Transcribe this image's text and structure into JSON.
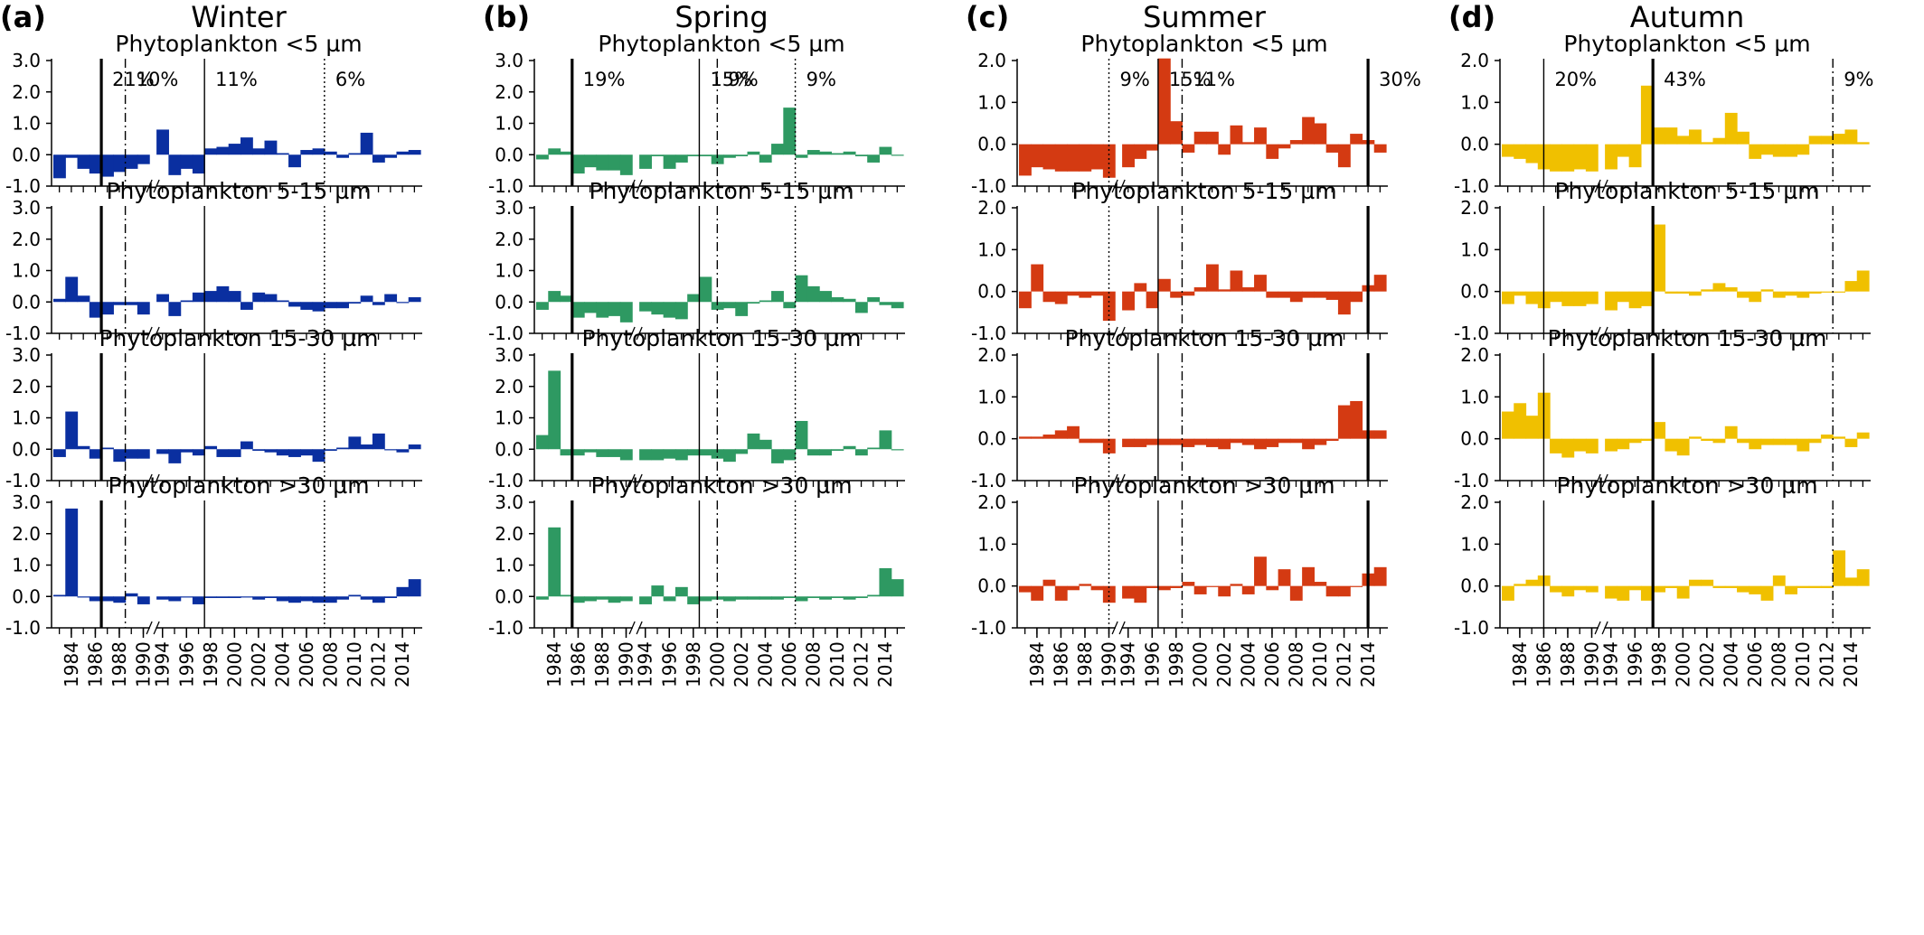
{
  "figure": {
    "years": [
      1983,
      1984,
      1985,
      1986,
      1987,
      1988,
      1989,
      1990,
      1994,
      1995,
      1996,
      1997,
      1998,
      1999,
      2000,
      2001,
      2002,
      2003,
      2004,
      2005,
      2006,
      2007,
      2008,
      2009,
      2010,
      2011,
      2012,
      2013,
      2014,
      2015
    ],
    "xtick_labels": [
      "1984",
      "1986",
      "1988",
      "1990",
      "1994",
      "1996",
      "1998",
      "2000",
      "2002",
      "2004",
      "2006",
      "2008",
      "2010",
      "2012",
      "2014"
    ],
    "size_classes": [
      "Phytoplankton <5 µm",
      "Phytoplankton 5-15 µm",
      "Phytoplankton 15-30 µm",
      "Phytoplankton >30 µm"
    ]
  },
  "chart_data": [
    {
      "type": "bar",
      "panel": "(a)",
      "title": "Winter",
      "color": "#0a2fa0",
      "ylim": [
        -1,
        3
      ],
      "yticks": [
        "3.0",
        "2.0",
        "1.0",
        "0.0",
        "-1.0"
      ],
      "breakpoints": [
        {
          "year": 1986.5,
          "style": "thick",
          "pct": "21%"
        },
        {
          "year": 1988.5,
          "style": "dashdot",
          "pct": "10%"
        },
        {
          "year": 1997.5,
          "style": "solid",
          "pct": "11%"
        },
        {
          "year": 2007.5,
          "style": "dotted",
          "pct": "6%"
        }
      ],
      "series": [
        {
          "name": "Phytoplankton <5 µm",
          "values": [
            -0.75,
            -0.1,
            -0.45,
            -0.6,
            -0.7,
            -0.55,
            -0.45,
            -0.3,
            0.8,
            -0.65,
            -0.45,
            -0.6,
            0.2,
            0.25,
            0.35,
            0.55,
            0.2,
            0.45,
            0.05,
            -0.4,
            0.15,
            0.2,
            0.1,
            -0.1,
            0.05,
            0.7,
            -0.25,
            -0.1,
            0.1,
            0.15
          ]
        },
        {
          "name": "Phytoplankton 5-15 µm",
          "values": [
            0.1,
            0.8,
            0.2,
            -0.5,
            -0.4,
            -0.1,
            -0.1,
            -0.4,
            0.25,
            -0.45,
            0.05,
            0.3,
            0.35,
            0.5,
            0.35,
            -0.25,
            0.3,
            0.25,
            0.05,
            -0.15,
            -0.25,
            -0.3,
            -0.2,
            -0.2,
            -0.05,
            0.2,
            -0.1,
            0.25,
            0.0,
            0.15
          ]
        },
        {
          "name": "Phytoplankton 15-30 µm",
          "values": [
            -0.25,
            1.2,
            0.1,
            -0.3,
            0.05,
            -0.4,
            -0.3,
            -0.3,
            -0.15,
            -0.45,
            -0.1,
            -0.2,
            0.1,
            -0.25,
            -0.25,
            0.25,
            -0.05,
            -0.1,
            -0.2,
            -0.25,
            -0.2,
            -0.4,
            -0.05,
            0.05,
            0.4,
            0.15,
            0.5,
            0.0,
            -0.1,
            0.15
          ]
        },
        {
          "name": "Phytoplankton >30 µm",
          "values": [
            0.05,
            2.8,
            0.0,
            -0.15,
            -0.15,
            -0.2,
            0.1,
            -0.25,
            -0.1,
            -0.15,
            0.0,
            -0.25,
            -0.05,
            -0.05,
            -0.05,
            0.0,
            -0.1,
            -0.05,
            -0.15,
            -0.2,
            -0.15,
            -0.2,
            -0.2,
            -0.1,
            0.05,
            -0.1,
            -0.2,
            -0.05,
            0.3,
            0.55
          ]
        }
      ]
    },
    {
      "type": "bar",
      "panel": "(b)",
      "title": "Spring",
      "color": "#2e9962",
      "ylim": [
        -1,
        3
      ],
      "yticks": [
        "3.0",
        "2.0",
        "1.0",
        "0.0",
        "-1.0"
      ],
      "breakpoints": [
        {
          "year": 1985.5,
          "style": "thick",
          "pct": "19%"
        },
        {
          "year": 1998.5,
          "style": "solid",
          "pct": "15%"
        },
        {
          "year": 2000.0,
          "style": "dashdot",
          "pct": "9%"
        },
        {
          "year": 2006.5,
          "style": "dotted",
          "pct": "9%"
        }
      ],
      "series": [
        {
          "name": "Phytoplankton <5 µm",
          "values": [
            -0.15,
            0.2,
            0.1,
            -0.6,
            -0.4,
            -0.5,
            -0.5,
            -0.65,
            -0.45,
            -0.05,
            -0.45,
            -0.25,
            -0.05,
            -0.05,
            -0.3,
            -0.1,
            -0.05,
            0.1,
            -0.25,
            0.35,
            1.5,
            -0.1,
            0.15,
            0.1,
            0.05,
            0.1,
            -0.05,
            -0.25,
            0.25,
            0.0
          ]
        },
        {
          "name": "Phytoplankton 5-15 µm",
          "values": [
            -0.25,
            0.35,
            0.2,
            -0.5,
            -0.35,
            -0.5,
            -0.45,
            -0.65,
            -0.3,
            -0.4,
            -0.5,
            -0.55,
            0.25,
            0.8,
            -0.25,
            -0.2,
            -0.45,
            -0.05,
            0.05,
            0.35,
            -0.2,
            0.85,
            0.5,
            0.35,
            0.15,
            0.1,
            -0.35,
            0.15,
            -0.1,
            -0.2
          ]
        },
        {
          "name": "Phytoplankton 15-30 µm",
          "values": [
            0.45,
            2.5,
            -0.2,
            -0.2,
            -0.1,
            -0.25,
            -0.25,
            -0.35,
            -0.35,
            -0.35,
            -0.3,
            -0.35,
            -0.2,
            -0.2,
            -0.3,
            -0.4,
            -0.15,
            0.5,
            0.3,
            -0.45,
            -0.35,
            0.9,
            -0.2,
            -0.2,
            -0.05,
            0.1,
            -0.2,
            0.05,
            0.6,
            0.0
          ]
        },
        {
          "name": "Phytoplankton >30 µm",
          "values": [
            -0.1,
            2.2,
            0.05,
            -0.2,
            -0.15,
            -0.1,
            -0.2,
            -0.15,
            -0.25,
            0.35,
            -0.15,
            0.3,
            -0.25,
            -0.15,
            -0.1,
            -0.15,
            -0.1,
            -0.1,
            -0.1,
            -0.1,
            -0.05,
            -0.15,
            -0.05,
            -0.1,
            -0.05,
            -0.1,
            -0.05,
            0.05,
            0.9,
            0.55
          ]
        }
      ]
    },
    {
      "type": "bar",
      "panel": "(c)",
      "title": "Summer",
      "color": "#d43a12",
      "ylim": [
        -1,
        2
      ],
      "yticks": [
        "2.0",
        "1.0",
        "0.0",
        "-1.0"
      ],
      "breakpoints": [
        {
          "year": 1990.0,
          "style": "dotted",
          "pct": "9%"
        },
        {
          "year": 1996.5,
          "style": "solid",
          "pct": "15%"
        },
        {
          "year": 1998.5,
          "style": "dashdot",
          "pct": "11%"
        },
        {
          "year": 2014.0,
          "style": "thick",
          "pct": "30%"
        }
      ],
      "series": [
        {
          "name": "Phytoplankton <5 µm",
          "values": [
            -0.75,
            -0.55,
            -0.6,
            -0.65,
            -0.65,
            -0.65,
            -0.6,
            -0.8,
            -0.55,
            -0.35,
            -0.15,
            2.05,
            0.55,
            -0.2,
            0.3,
            0.3,
            -0.25,
            0.45,
            0.05,
            0.4,
            -0.35,
            -0.1,
            0.1,
            0.65,
            0.5,
            -0.2,
            -0.55,
            0.25,
            0.1,
            -0.2
          ]
        },
        {
          "name": "Phytoplankton 5-15 µm",
          "values": [
            -0.4,
            0.65,
            -0.25,
            -0.3,
            -0.1,
            -0.15,
            -0.1,
            -0.7,
            -0.45,
            0.2,
            -0.4,
            0.3,
            -0.15,
            -0.1,
            0.1,
            0.65,
            0.05,
            0.5,
            0.1,
            0.4,
            -0.15,
            -0.15,
            -0.25,
            -0.15,
            -0.15,
            -0.2,
            -0.55,
            -0.25,
            0.15,
            0.4
          ]
        },
        {
          "name": "Phytoplankton 15-30 µm",
          "values": [
            0.05,
            0.05,
            0.1,
            0.2,
            0.3,
            -0.1,
            -0.1,
            -0.35,
            -0.2,
            -0.2,
            -0.15,
            -0.15,
            -0.15,
            -0.2,
            -0.15,
            -0.2,
            -0.25,
            -0.1,
            -0.15,
            -0.25,
            -0.2,
            -0.1,
            -0.1,
            -0.25,
            -0.15,
            -0.05,
            0.8,
            0.9,
            0.2,
            0.2
          ]
        },
        {
          "name": "Phytoplankton >30 µm",
          "values": [
            -0.15,
            -0.35,
            0.15,
            -0.35,
            -0.1,
            0.05,
            -0.1,
            -0.4,
            -0.3,
            -0.4,
            -0.05,
            -0.1,
            -0.05,
            0.1,
            -0.2,
            0.0,
            -0.25,
            0.05,
            -0.2,
            0.7,
            -0.1,
            0.4,
            -0.35,
            0.45,
            0.1,
            -0.25,
            -0.25,
            0.0,
            0.3,
            0.45
          ]
        }
      ]
    },
    {
      "type": "bar",
      "panel": "(d)",
      "title": "Autumn",
      "color": "#f0c000",
      "ylim": [
        -1,
        2
      ],
      "yticks": [
        "2.0",
        "1.0",
        "0.0",
        "-1.0"
      ],
      "breakpoints": [
        {
          "year": 1986.0,
          "style": "solid",
          "pct": "20%"
        },
        {
          "year": 1997.5,
          "style": "thick",
          "pct": "43%"
        },
        {
          "year": 2012.5,
          "style": "dashdot",
          "pct": "9%"
        }
      ],
      "series": [
        {
          "name": "Phytoplankton <5 µm",
          "values": [
            -0.3,
            -0.35,
            -0.45,
            -0.6,
            -0.65,
            -0.65,
            -0.6,
            -0.65,
            -0.6,
            -0.3,
            -0.55,
            1.4,
            0.4,
            0.4,
            0.2,
            0.35,
            0.05,
            0.15,
            0.75,
            0.3,
            -0.35,
            -0.25,
            -0.3,
            -0.3,
            -0.25,
            0.2,
            0.2,
            0.25,
            0.35,
            0.05
          ]
        },
        {
          "name": "Phytoplankton 5-15 µm",
          "values": [
            -0.3,
            -0.1,
            -0.3,
            -0.4,
            -0.25,
            -0.35,
            -0.35,
            -0.3,
            -0.45,
            -0.25,
            -0.4,
            -0.35,
            1.6,
            -0.05,
            -0.05,
            -0.1,
            0.05,
            0.2,
            0.1,
            -0.15,
            -0.25,
            0.05,
            -0.15,
            -0.1,
            -0.15,
            -0.05,
            0.0,
            0.0,
            0.25,
            0.5
          ]
        },
        {
          "name": "Phytoplankton 15-30 µm",
          "values": [
            0.65,
            0.85,
            0.55,
            1.1,
            -0.35,
            -0.45,
            -0.3,
            -0.35,
            -0.3,
            -0.25,
            -0.1,
            -0.05,
            0.4,
            -0.3,
            -0.4,
            0.05,
            -0.05,
            -0.1,
            0.3,
            -0.1,
            -0.25,
            -0.15,
            -0.15,
            -0.15,
            -0.3,
            -0.1,
            0.1,
            0.05,
            -0.2,
            0.15
          ]
        },
        {
          "name": "Phytoplankton >30 µm",
          "values": [
            -0.35,
            0.05,
            0.15,
            0.25,
            -0.15,
            -0.25,
            -0.1,
            -0.15,
            -0.3,
            -0.35,
            -0.1,
            -0.35,
            -0.15,
            -0.05,
            -0.3,
            0.15,
            0.15,
            -0.05,
            -0.05,
            -0.15,
            -0.2,
            -0.35,
            0.25,
            -0.2,
            -0.05,
            -0.05,
            -0.05,
            0.85,
            0.2,
            0.4
          ]
        }
      ]
    }
  ]
}
